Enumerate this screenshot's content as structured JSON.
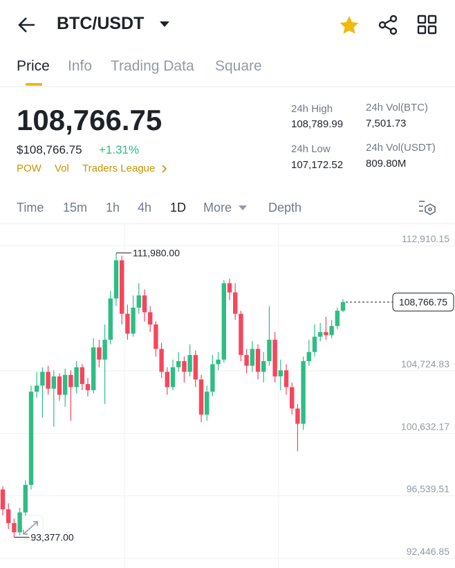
{
  "header": {
    "pair": "BTC/USDT"
  },
  "tabs": [
    "Price",
    "Info",
    "Trading Data",
    "Square"
  ],
  "price": {
    "last": "108,766.75",
    "usd": "$108,766.75",
    "change": "+1.31%",
    "tags": [
      "POW",
      "Vol",
      "Traders League"
    ]
  },
  "stats": [
    {
      "label": "24h High",
      "value": "108,789.99"
    },
    {
      "label": "24h Vol(BTC)",
      "value": "7,501.73"
    },
    {
      "label": "24h Low",
      "value": "107,172.52"
    },
    {
      "label": "24h Vol(USDT)",
      "value": "809.80M"
    }
  ],
  "intervals": [
    "Time",
    "15m",
    "1h",
    "4h",
    "1D",
    "More",
    "Depth"
  ],
  "chart_data": {
    "type": "candlestick",
    "open": [
      96500,
      95200,
      94300,
      93700,
      95000,
      96800,
      102900,
      103300,
      104200,
      103100,
      103900,
      102700,
      104000,
      103200,
      104500,
      103400,
      103000,
      105800,
      105000,
      106300,
      109000,
      111500,
      108000,
      106700,
      108400,
      109200,
      108100,
      107300,
      105700,
      104200,
      103200,
      104500,
      104900,
      104200,
      105300,
      103700,
      101400,
      102900,
      104700,
      105000,
      110000,
      109400,
      108000,
      105300,
      104600,
      105700,
      104200,
      104900,
      106300,
      103900,
      104300,
      103200,
      101800,
      100800,
      104900,
      105500,
      106500,
      106800,
      106600,
      107200,
      108200
    ],
    "high": [
      96700,
      95600,
      94600,
      95300,
      97100,
      103300,
      104200,
      104500,
      104600,
      104300,
      104100,
      104400,
      104300,
      104900,
      104700,
      103800,
      106400,
      106300,
      107300,
      109500,
      111980,
      111800,
      108600,
      109200,
      110000,
      109600,
      108500,
      107500,
      106100,
      104500,
      105000,
      105500,
      105200,
      106000,
      105600,
      104000,
      103300,
      105300,
      105500,
      110200,
      110300,
      110000,
      108200,
      105700,
      106200,
      106000,
      105500,
      108500,
      106800,
      105000,
      104700,
      103500,
      102100,
      105200,
      106300,
      107300,
      107400,
      107800,
      107600,
      108400,
      108950
    ],
    "low": [
      94800,
      93900,
      93377,
      93500,
      94800,
      96500,
      102500,
      101200,
      102700,
      100600,
      102300,
      101900,
      101000,
      102800,
      103000,
      102600,
      102800,
      104500,
      102100,
      106000,
      108500,
      107300,
      106300,
      106500,
      108000,
      107500,
      106800,
      105200,
      103800,
      102700,
      103000,
      104200,
      103500,
      103900,
      103200,
      100900,
      101000,
      102600,
      104300,
      104800,
      108900,
      107600,
      104900,
      104100,
      104200,
      103700,
      103500,
      104600,
      103500,
      103000,
      102700,
      101400,
      99000,
      100400,
      104600,
      105200,
      106200,
      106300,
      106400,
      107000,
      108100
    ],
    "close": [
      95200,
      94300,
      93700,
      95000,
      96800,
      102900,
      103300,
      104200,
      103100,
      103900,
      102700,
      104000,
      103200,
      104500,
      103400,
      103000,
      105800,
      105000,
      106300,
      109000,
      111500,
      108000,
      106700,
      108400,
      109200,
      108100,
      107300,
      105700,
      104200,
      103200,
      104500,
      104900,
      104200,
      105300,
      103700,
      101400,
      102900,
      104700,
      105000,
      110000,
      109400,
      108000,
      105300,
      104600,
      105700,
      104200,
      104900,
      106300,
      103900,
      104300,
      103200,
      101800,
      100800,
      104900,
      105500,
      106500,
      106800,
      106600,
      107200,
      108200,
      108766.75
    ],
    "up_color": "#2ebd85",
    "down_color": "#f6465d",
    "ylim": [
      91860,
      113820
    ],
    "yticks": [
      {
        "value": 112910.15,
        "label": "112,910.15"
      },
      {
        "value": 104724.83,
        "label": "104,724.83"
      },
      {
        "value": 100632.17,
        "label": "100,632.17"
      },
      {
        "value": 96539.51,
        "label": "96,539.51"
      },
      {
        "value": 92446.85,
        "label": "92,446.85"
      }
    ],
    "annotations": [
      {
        "value": 111980,
        "label": "111,980.00"
      },
      {
        "value": 93377,
        "label": "93,377.00"
      }
    ],
    "last_price": {
      "value": 108766.75,
      "label": "108,766.75"
    },
    "grid": true
  }
}
